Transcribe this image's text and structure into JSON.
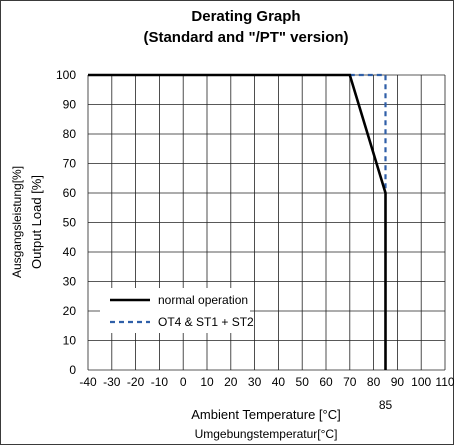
{
  "chart_data": {
    "type": "line",
    "title": "Derating Graph",
    "subtitle": "(Standard and \"/PT\" version)",
    "xlabel": "Ambient Temperature [°C]",
    "xlabel_secondary": "Umgebungstemperatur[°C]",
    "ylabel": "Output Load [%]",
    "ylabel_secondary": "Ausgangsleistung[%]",
    "xlim": [
      -40,
      110
    ],
    "ylim": [
      0,
      100
    ],
    "x_ticks": [
      -40,
      -30,
      -20,
      -10,
      0,
      10,
      20,
      30,
      40,
      50,
      60,
      70,
      80,
      90,
      100,
      110
    ],
    "x_tick_labels": [
      "-40",
      "-30",
      "-20",
      "-10",
      "0",
      "10",
      "20",
      "30",
      "40",
      "50",
      "60",
      "70",
      "80",
      "90",
      "100",
      "110"
    ],
    "y_ticks": [
      0,
      10,
      20,
      30,
      40,
      50,
      60,
      70,
      80,
      90,
      100
    ],
    "y_tick_labels": [
      "0",
      "10",
      "20",
      "30",
      "40",
      "50",
      "60",
      "70",
      "80",
      "90",
      "100"
    ],
    "grid": true,
    "annotation": {
      "text": "85",
      "x": 85
    },
    "legend_position": "bottom-left",
    "series": [
      {
        "name": "normal operation",
        "style": "solid",
        "color": "#000000",
        "x": [
          -40,
          70,
          85,
          85
        ],
        "y": [
          100,
          100,
          60,
          0
        ]
      },
      {
        "name": "OT4 & ST1 + ST2",
        "style": "dashed",
        "color": "#2f5fa8",
        "x": [
          70,
          85,
          85
        ],
        "y": [
          100,
          100,
          60
        ]
      }
    ]
  }
}
